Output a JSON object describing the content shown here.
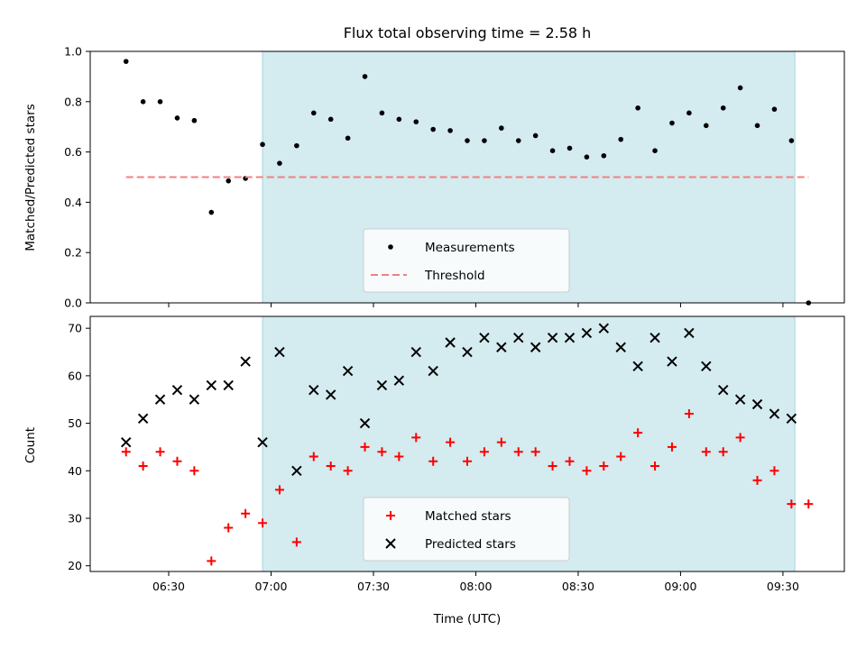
{
  "chart_data": {
    "type": "scatter",
    "title": "Flux total observing time = 2.58 h",
    "xlabel": "Time (UTC)",
    "x_ticks": [
      "06:30",
      "07:00",
      "07:30",
      "08:00",
      "08:30",
      "09:00",
      "09:30"
    ],
    "x_tick_minutes": [
      390,
      420,
      450,
      480,
      510,
      540,
      570
    ],
    "xlim_minutes": [
      367,
      588
    ],
    "shaded_span_minutes": [
      417.5,
      573.5
    ],
    "shade_color": "#d4ebf0",
    "panels": [
      {
        "ylabel": "Matched/Predicted stars",
        "ylim": [
          0,
          1.0
        ],
        "y_ticks": [
          "0.0",
          "0.2",
          "0.4",
          "0.6",
          "0.8",
          "1.0"
        ],
        "y_tick_values": [
          0,
          0.2,
          0.4,
          0.6,
          0.8,
          1.0
        ],
        "legend": {
          "placement": "lower-center",
          "entries": [
            "Measurements",
            "Threshold"
          ]
        },
        "series": [
          {
            "name": "Measurements",
            "marker": "dot",
            "color": "#000000",
            "x_minutes": [
              377.5,
              382.5,
              387.5,
              392.5,
              397.5,
              402.5,
              407.5,
              412.5,
              417.5,
              422.5,
              427.5,
              432.5,
              437.5,
              442.5,
              447.5,
              452.5,
              457.5,
              462.5,
              467.5,
              472.5,
              477.5,
              482.5,
              487.5,
              492.5,
              497.5,
              502.5,
              507.5,
              512.5,
              517.5,
              522.5,
              527.5,
              532.5,
              537.5,
              542.5,
              547.5,
              552.5,
              557.5,
              562.5,
              567.5,
              572.5,
              577.5
            ],
            "y": [
              0.96,
              0.8,
              0.8,
              0.735,
              0.725,
              0.36,
              0.485,
              0.495,
              0.63,
              0.555,
              0.625,
              0.755,
              0.73,
              0.655,
              0.9,
              0.755,
              0.73,
              0.72,
              0.69,
              0.685,
              0.645,
              0.645,
              0.695,
              0.645,
              0.665,
              0.605,
              0.615,
              0.58,
              0.585,
              0.65,
              0.775,
              0.605,
              0.715,
              0.755,
              0.705,
              0.775,
              0.855,
              0.705,
              0.77,
              0.645,
              0.0
            ]
          },
          {
            "name": "Threshold",
            "marker": "dashed-line",
            "color": "#f08080",
            "x_minutes": [
              377.5,
              577.5
            ],
            "y": [
              0.5,
              0.5
            ]
          }
        ]
      },
      {
        "ylabel": "Count",
        "ylim": [
          18.8,
          72.5
        ],
        "y_ticks": [
          "20",
          "30",
          "40",
          "50",
          "60",
          "70"
        ],
        "y_tick_values": [
          20,
          30,
          40,
          50,
          60,
          70
        ],
        "legend": {
          "placement": "lower-center",
          "entries": [
            "Matched stars",
            "Predicted stars"
          ]
        },
        "series": [
          {
            "name": "Matched stars",
            "marker": "plus",
            "color": "#ff0000",
            "x_minutes": [
              377.5,
              382.5,
              387.5,
              392.5,
              397.5,
              402.5,
              407.5,
              412.5,
              417.5,
              422.5,
              427.5,
              432.5,
              437.5,
              442.5,
              447.5,
              452.5,
              457.5,
              462.5,
              467.5,
              472.5,
              477.5,
              482.5,
              487.5,
              492.5,
              497.5,
              502.5,
              507.5,
              512.5,
              517.5,
              522.5,
              527.5,
              532.5,
              537.5,
              542.5,
              547.5,
              552.5,
              557.5,
              562.5,
              567.5,
              572.5,
              577.5
            ],
            "y": [
              44,
              41,
              44,
              42,
              40,
              21,
              28,
              31,
              29,
              36,
              25,
              43,
              41,
              40,
              45,
              44,
              43,
              47,
              42,
              46,
              42,
              44,
              46,
              44,
              44,
              41,
              42,
              40,
              41,
              43,
              48,
              41,
              45,
              52,
              44,
              44,
              47,
              38,
              40,
              33,
              33
            ]
          },
          {
            "name": "Predicted stars",
            "marker": "x",
            "color": "#000000",
            "x_minutes": [
              377.5,
              382.5,
              387.5,
              392.5,
              397.5,
              402.5,
              407.5,
              412.5,
              417.5,
              422.5,
              427.5,
              432.5,
              437.5,
              442.5,
              447.5,
              452.5,
              457.5,
              462.5,
              467.5,
              472.5,
              477.5,
              482.5,
              487.5,
              492.5,
              497.5,
              502.5,
              507.5,
              512.5,
              517.5,
              522.5,
              527.5,
              532.5,
              537.5,
              542.5,
              547.5,
              552.5,
              557.5,
              562.5,
              567.5,
              572.5
            ],
            "y": [
              46,
              51,
              55,
              57,
              55,
              58,
              58,
              63,
              46,
              65,
              40,
              57,
              56,
              61,
              50,
              58,
              59,
              65,
              61,
              67,
              65,
              68,
              66,
              68,
              66,
              68,
              68,
              69,
              70,
              66,
              62,
              68,
              63,
              69,
              62,
              57,
              55,
              54,
              52,
              51
            ]
          }
        ]
      }
    ]
  }
}
